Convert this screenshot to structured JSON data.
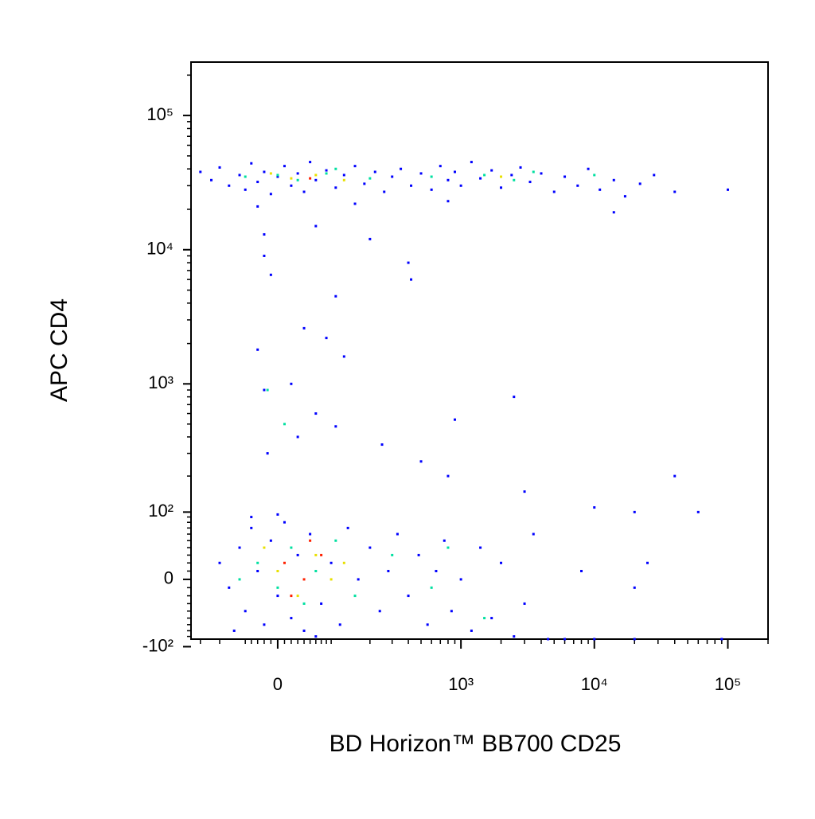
{
  "chart_data": {
    "type": "scatter",
    "xlabel": "BD Horizon™ BB700 CD25",
    "ylabel": "APC CD4",
    "scale": "biexponential",
    "xlim": [
      -180,
      200000
    ],
    "ylim": [
      -85,
      250000
    ],
    "xticks": [
      0,
      {
        "value": 1000,
        "label": "10³"
      },
      {
        "value": 10000,
        "label": "10⁴"
      },
      {
        "value": 100000,
        "label": "10⁵"
      }
    ],
    "yticks": [
      {
        "value": 100000,
        "label": "10⁵"
      },
      {
        "value": 10000,
        "label": "10⁴"
      },
      {
        "value": 1000,
        "label": "10³"
      },
      {
        "value": 100,
        "label": "10²"
      },
      0,
      {
        "value": -100,
        "label": "-10²"
      }
    ],
    "xminorticks": [
      -150,
      -100,
      -50,
      -40,
      -30,
      -20,
      -10,
      10,
      20,
      30,
      40,
      50,
      60,
      70,
      80,
      90,
      200,
      300,
      400,
      500,
      600,
      700,
      800,
      900,
      2000,
      3000,
      4000,
      5000,
      6000,
      7000,
      8000,
      9000,
      20000,
      30000,
      40000,
      50000,
      60000,
      70000,
      80000,
      90000,
      200000
    ],
    "yminorticks": [
      200000,
      20000,
      30000,
      40000,
      50000,
      60000,
      70000,
      80000,
      90000,
      2000,
      3000,
      4000,
      5000,
      6000,
      7000,
      8000,
      9000,
      200,
      300,
      400,
      500,
      600,
      700,
      800,
      900,
      90,
      80,
      70,
      60,
      50,
      40,
      30,
      20,
      10,
      -10,
      -20,
      -30,
      -40,
      -50,
      -60,
      -70,
      -80
    ],
    "series": [
      {
        "color": "#0000ff",
        "x": [
          -150,
          -120,
          -100,
          -80,
          -60,
          -50,
          -40,
          -30,
          -20,
          -10,
          0,
          10,
          20,
          30,
          40,
          50,
          60,
          80,
          100,
          120,
          150,
          180,
          220,
          260,
          300,
          350,
          420,
          500,
          600,
          700,
          800,
          900,
          1000,
          1200,
          1400,
          1700,
          2000,
          2400,
          2800,
          3300,
          4000,
          5000,
          6000,
          7500,
          9000,
          11000,
          14000,
          17000,
          22000,
          28000,
          40000,
          100000,
          14000,
          800,
          150,
          -30,
          -20,
          -20,
          60,
          200,
          400,
          420,
          -10,
          100,
          40,
          80,
          120,
          -30,
          -20,
          20,
          60,
          30,
          -15,
          100,
          2500,
          900,
          250,
          500,
          800,
          40000,
          3000,
          10000,
          20000,
          60000,
          -100,
          -80,
          -60,
          -50,
          -40,
          -30,
          -20,
          -10,
          0,
          10,
          20,
          30,
          40,
          50,
          70,
          90,
          110,
          130,
          160,
          200,
          240,
          280,
          330,
          400,
          480,
          560,
          650,
          750,
          850,
          1000,
          1200,
          1400,
          1700,
          2000,
          2500,
          3000,
          3500,
          4500,
          6000,
          10000,
          20000,
          90000,
          8000,
          25000,
          20000,
          -70,
          0,
          -40,
          60
        ],
        "y": [
          38000,
          33000,
          41000,
          30000,
          36000,
          28000,
          44000,
          32000,
          38000,
          26000,
          35000,
          42000,
          30000,
          37000,
          27000,
          45000,
          33000,
          39000,
          29000,
          36000,
          42000,
          31000,
          38000,
          27000,
          35000,
          40000,
          30000,
          37000,
          28000,
          42000,
          33000,
          38000,
          30000,
          45000,
          34000,
          39000,
          29000,
          36000,
          41000,
          32000,
          37000,
          27000,
          35000,
          30000,
          40000,
          28000,
          33000,
          25000,
          31000,
          36000,
          27000,
          28000,
          19000,
          23000,
          22000,
          21000,
          13000,
          9000,
          15000,
          12000,
          8000,
          6000,
          6500,
          4500,
          2600,
          2200,
          1600,
          1800,
          900,
          1000,
          600,
          400,
          300,
          480,
          800,
          540,
          350,
          260,
          200,
          200,
          150,
          110,
          100,
          100,
          20,
          -10,
          40,
          -40,
          70,
          10,
          -60,
          50,
          -20,
          80,
          -50,
          30,
          -70,
          60,
          -30,
          20,
          -60,
          70,
          0,
          40,
          -40,
          10,
          60,
          -20,
          30,
          -60,
          10,
          50,
          -40,
          0,
          -70,
          40,
          -50,
          20,
          -80,
          -30,
          60,
          -85,
          -85,
          -85,
          -85,
          -85,
          10,
          20,
          -10,
          -70,
          95,
          90,
          -80
        ]
      },
      {
        "color": "#00e0a0",
        "x": [
          0,
          30,
          80,
          200,
          600,
          1500,
          2500,
          3500,
          10000,
          -50,
          100,
          -30,
          0,
          20,
          40,
          60,
          100,
          150,
          -60,
          300,
          600,
          1500,
          800,
          10,
          -15
        ],
        "y": [
          36000,
          33000,
          37000,
          34000,
          35000,
          36000,
          33000,
          38000,
          36000,
          35000,
          40000,
          20,
          -10,
          40,
          -30,
          10,
          50,
          -20,
          0,
          30,
          -10,
          -50,
          40,
          500,
          900
        ]
      },
      {
        "color": "#e8e000",
        "x": [
          20,
          60,
          120,
          2000,
          -10,
          0,
          30,
          60,
          90,
          -20,
          120
        ],
        "y": [
          34000,
          36000,
          33000,
          35000,
          37000,
          10,
          -20,
          30,
          0,
          40,
          20
        ]
      },
      {
        "color": "#ff2000",
        "x": [
          10,
          40,
          70,
          20,
          50,
          50
        ],
        "y": [
          20,
          0,
          30,
          -20,
          50,
          34000
        ]
      }
    ]
  }
}
